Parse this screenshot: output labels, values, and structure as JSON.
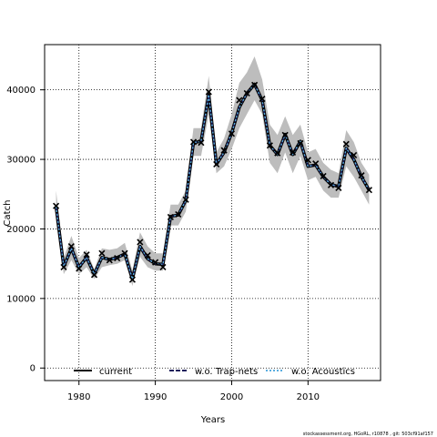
{
  "chart_data": {
    "type": "line",
    "xlabel": "Years",
    "ylabel": "Catch",
    "xlim": [
      1975.5,
      2019.5
    ],
    "ylim": [
      -1800,
      46500
    ],
    "x_ticks": [
      1980,
      1990,
      2000,
      2010
    ],
    "y_ticks": [
      0,
      10000,
      20000,
      30000,
      40000
    ],
    "grid": true,
    "grid_style": "dotted",
    "legend_position": "bottom",
    "colors": {
      "current": "#000000",
      "w.o. Trap-nets": "#1f1f5c",
      "w.o. Acoustics": "#5aaee0",
      "band": "#bdbdbd",
      "observed": "#000000"
    },
    "years": [
      1977,
      1978,
      1979,
      1980,
      1981,
      1982,
      1983,
      1984,
      1985,
      1986,
      1987,
      1988,
      1989,
      1990,
      1991,
      1992,
      1993,
      1994,
      1995,
      1996,
      1997,
      1998,
      1999,
      2000,
      2001,
      2002,
      2003,
      2004,
      2005,
      2006,
      2007,
      2008,
      2009,
      2010,
      2011,
      2012,
      2013,
      2014,
      2015,
      2016,
      2017,
      2018
    ],
    "band_lower": [
      21000,
      13500,
      15500,
      13500,
      14500,
      12800,
      14500,
      14800,
      15000,
      15500,
      11800,
      16000,
      14500,
      14000,
      14000,
      20500,
      20500,
      22500,
      30500,
      30500,
      36500,
      28000,
      29000,
      31500,
      34500,
      36500,
      38500,
      36500,
      29500,
      28000,
      31000,
      28000,
      30500,
      27000,
      27500,
      25500,
      24500,
      24500,
      29000,
      27500,
      25500,
      23500
    ],
    "band_upper": [
      25500,
      15800,
      19000,
      15800,
      17000,
      14200,
      17200,
      17000,
      17200,
      18000,
      14000,
      19500,
      17500,
      16500,
      16500,
      23500,
      23500,
      25500,
      34500,
      34500,
      42000,
      31000,
      33000,
      36500,
      41000,
      42500,
      44800,
      41500,
      35000,
      33500,
      36200,
      33500,
      35000,
      31000,
      31500,
      29500,
      28500,
      28000,
      34200,
      32500,
      29500,
      27800
    ],
    "series": [
      {
        "name": "current",
        "values": [
          23200,
          14600,
          17200,
          14500,
          15900,
          13500,
          15900,
          15600,
          15900,
          16400,
          12800,
          17500,
          15700,
          15000,
          14900,
          21800,
          22000,
          24100,
          32400,
          32600,
          39300,
          29300,
          31000,
          33800,
          37500,
          39500,
          40800,
          38500,
          32000,
          30700,
          33600,
          30700,
          32600,
          29000,
          29200,
          27500,
          26400,
          26100,
          31600,
          30000,
          27500,
          25600
        ]
      },
      {
        "name": "w.o. Trap-nets",
        "values": [
          23200,
          14600,
          17200,
          14500,
          15900,
          13500,
          15900,
          15600,
          15900,
          16400,
          12800,
          17500,
          15700,
          15000,
          14900,
          21800,
          22000,
          24100,
          32400,
          32600,
          39300,
          29300,
          31000,
          33800,
          37500,
          39500,
          40800,
          38500,
          32000,
          30700,
          33600,
          30700,
          32600,
          29000,
          29200,
          27500,
          26400,
          26100,
          31600,
          30000,
          27500,
          25600
        ]
      },
      {
        "name": "w.o. Acoustics",
        "values": [
          23200,
          14600,
          17200,
          14500,
          15900,
          13500,
          15900,
          15600,
          15900,
          16400,
          12800,
          17500,
          15700,
          15000,
          14900,
          21800,
          22000,
          24100,
          32400,
          32600,
          39300,
          29300,
          31000,
          33800,
          37500,
          39500,
          40800,
          38500,
          32000,
          30700,
          33600,
          30700,
          32600,
          29000,
          29200,
          27500,
          26400,
          26100,
          31600,
          30000,
          27500,
          25600
        ]
      }
    ],
    "observed": [
      23300,
      14500,
      17500,
      14300,
      16300,
      13400,
      16500,
      15500,
      15800,
      16500,
      12700,
      18100,
      16200,
      15200,
      14500,
      21700,
      22100,
      24200,
      32500,
      32400,
      39700,
      29300,
      31300,
      33700,
      38500,
      39500,
      40700,
      38700,
      32000,
      30900,
      33500,
      31000,
      32300,
      29900,
      29400,
      27600,
      26300,
      25900,
      32200,
      30600,
      27700,
      25600
    ]
  },
  "legend": {
    "items": [
      "current",
      "w.o. Trap-nets",
      "w.o. Acoustics"
    ]
  },
  "labels": {
    "x_ticks": [
      "1980",
      "1990",
      "2000",
      "2010"
    ],
    "y_ticks": [
      "0",
      "10000",
      "20000",
      "30000",
      "40000"
    ]
  },
  "footer": {
    "note": "stockassessment.org, HGoRL, r10878 , git: 503cf91af157"
  }
}
